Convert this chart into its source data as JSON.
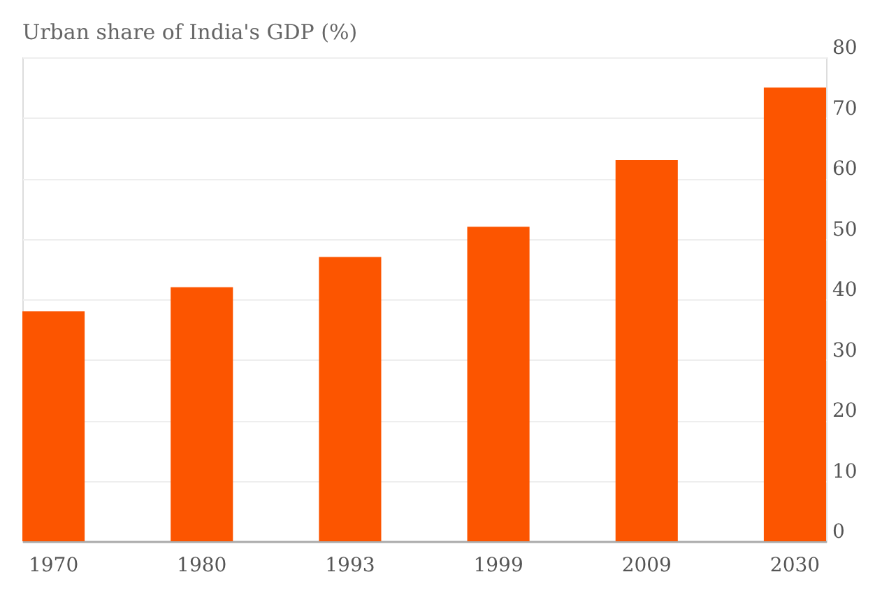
{
  "chart_data": {
    "type": "bar",
    "title": "Urban share of India's GDP (%)",
    "categories": [
      "1970",
      "1980",
      "1993",
      "1999",
      "2009",
      "2030"
    ],
    "values": [
      38,
      42,
      47,
      52,
      63,
      75
    ],
    "color": "#fc5500",
    "ylim": [
      0,
      80
    ],
    "yticks": [
      0,
      10,
      20,
      30,
      40,
      50,
      60,
      70,
      80
    ],
    "grid": "y"
  }
}
